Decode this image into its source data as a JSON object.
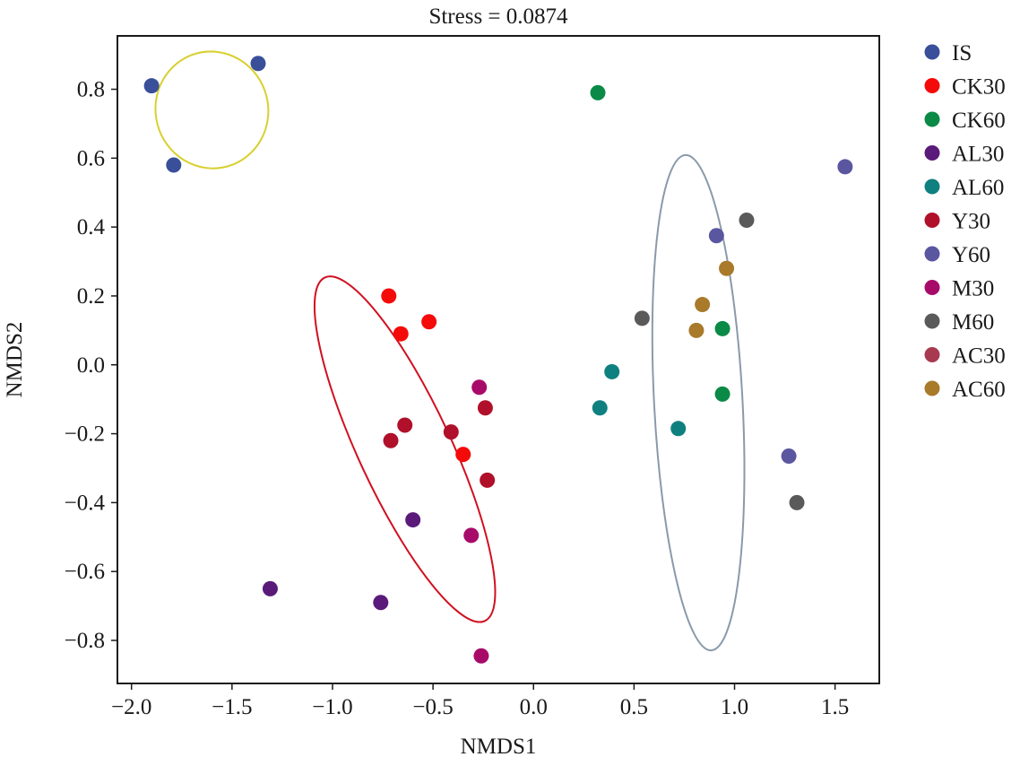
{
  "chart_data": {
    "type": "scatter",
    "title": "Stress = 0.0874",
    "xlabel": "NMDS1",
    "ylabel": "NMDS2",
    "xlim": [
      -2.07,
      1.72
    ],
    "ylim": [
      -0.925,
      0.955
    ],
    "xticks": [
      -2.0,
      -1.5,
      -1.0,
      -0.5,
      0.0,
      0.5,
      1.0,
      1.5
    ],
    "xtick_labels": [
      "−2.0",
      "−1.5",
      "−1.0",
      "−0.5",
      "0.0",
      "0.5",
      "1.0",
      "1.5"
    ],
    "yticks": [
      -0.8,
      -0.6,
      -0.4,
      -0.2,
      0.0,
      0.2,
      0.4,
      0.6,
      0.8
    ],
    "ytick_labels": [
      "−0.8",
      "−0.6",
      "−0.4",
      "−0.2",
      "0.0",
      "0.2",
      "0.4",
      "0.6",
      "0.8"
    ],
    "grid": false,
    "legend_position": "right",
    "series": [
      {
        "name": "IS",
        "color": "#3a4f9a",
        "points": [
          [
            -1.9,
            0.81
          ],
          [
            -1.37,
            0.875
          ],
          [
            -1.79,
            0.58
          ]
        ]
      },
      {
        "name": "CK30",
        "color": "#f50a0a",
        "points": [
          [
            -0.72,
            0.2
          ],
          [
            -0.52,
            0.125
          ],
          [
            -0.66,
            0.09
          ],
          [
            -0.35,
            -0.26
          ]
        ]
      },
      {
        "name": "CK60",
        "color": "#0a8a46",
        "points": [
          [
            0.32,
            0.79
          ],
          [
            0.94,
            0.105
          ],
          [
            0.94,
            -0.085
          ]
        ]
      },
      {
        "name": "AL30",
        "color": "#5a1a7a",
        "points": [
          [
            -1.31,
            -0.65
          ],
          [
            -0.6,
            -0.45
          ],
          [
            -0.76,
            -0.69
          ]
        ]
      },
      {
        "name": "AL60",
        "color": "#0f8080",
        "points": [
          [
            0.39,
            -0.02
          ],
          [
            0.33,
            -0.125
          ],
          [
            0.72,
            -0.185
          ]
        ]
      },
      {
        "name": "Y30",
        "color": "#b0102a",
        "points": [
          [
            -0.64,
            -0.175
          ],
          [
            -0.71,
            -0.22
          ],
          [
            -0.41,
            -0.195
          ],
          [
            -0.24,
            -0.125
          ],
          [
            -0.23,
            -0.335
          ]
        ]
      },
      {
        "name": "Y60",
        "color": "#5a56a0",
        "points": [
          [
            1.55,
            0.575
          ],
          [
            0.91,
            0.375
          ],
          [
            1.27,
            -0.265
          ]
        ]
      },
      {
        "name": "M30",
        "color": "#a80a6a",
        "points": [
          [
            -0.27,
            -0.065
          ],
          [
            -0.31,
            -0.495
          ],
          [
            -0.26,
            -0.845
          ]
        ]
      },
      {
        "name": "M60",
        "color": "#5a5a5a",
        "points": [
          [
            1.06,
            0.42
          ],
          [
            0.54,
            0.135
          ],
          [
            1.31,
            -0.4
          ]
        ]
      },
      {
        "name": "AC30",
        "color": "#a83a50",
        "points": []
      },
      {
        "name": "AC60",
        "color": "#a87a2a",
        "points": [
          [
            0.96,
            0.28
          ],
          [
            0.84,
            0.175
          ],
          [
            0.81,
            0.1
          ]
        ]
      }
    ],
    "ellipses": [
      {
        "color": "#d8d030",
        "cx": -1.6,
        "cy": 0.74,
        "rx": 0.28,
        "ry": 0.17,
        "angle_deg": 15
      },
      {
        "color": "#d01020",
        "cx": -0.64,
        "cy": -0.245,
        "rx": 0.23,
        "ry": 0.55,
        "angle_deg": 25
      },
      {
        "color": "#8a9aaa",
        "cx": 0.82,
        "cy": -0.11,
        "rx": 0.22,
        "ry": 0.72,
        "angle_deg": 3
      }
    ]
  }
}
